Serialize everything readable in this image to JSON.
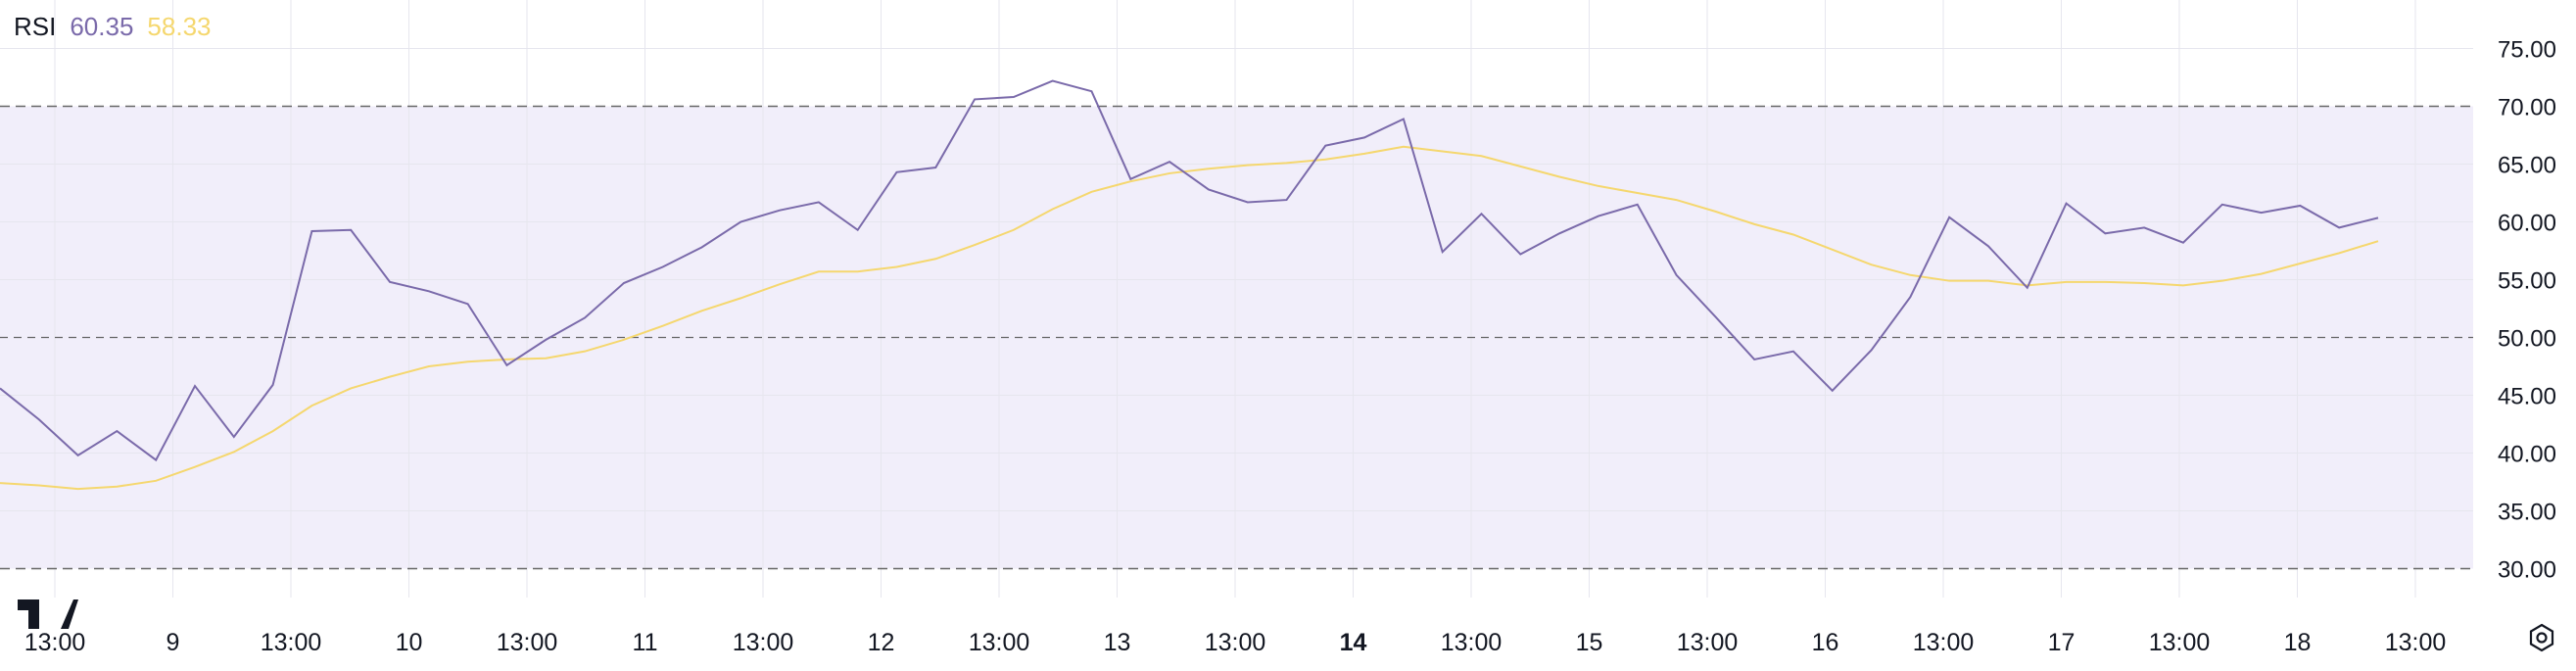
{
  "indicator": {
    "name": "RSI",
    "rsi_value": "60.35",
    "ma_value": "58.33"
  },
  "colors": {
    "rsi": "#7a6aaa",
    "ma": "#f5d76e",
    "band_fill": "#f1eefa",
    "grid": "#e6e6ee",
    "dashed": "#666666",
    "text": "#131722",
    "logo": "#131722"
  },
  "icons": {
    "logo": "tradingview-logo-icon",
    "settings": "settings-gear-icon"
  },
  "chart_data": {
    "type": "line",
    "title": "",
    "xlabel": "",
    "ylabel": "",
    "ylim": [
      27.5,
      77.5
    ],
    "y_ticks": [
      "75.00",
      "70.00",
      "65.00",
      "60.00",
      "55.00",
      "50.00",
      "45.00",
      "40.00",
      "35.00",
      "30.00"
    ],
    "x_ticks": [
      {
        "label": "13:00",
        "bold": false
      },
      {
        "label": "9",
        "bold": false
      },
      {
        "label": "13:00",
        "bold": false
      },
      {
        "label": "10",
        "bold": false
      },
      {
        "label": "13:00",
        "bold": false
      },
      {
        "label": "11",
        "bold": false
      },
      {
        "label": "13:00",
        "bold": false
      },
      {
        "label": "12",
        "bold": false
      },
      {
        "label": "13:00",
        "bold": false
      },
      {
        "label": "13",
        "bold": false
      },
      {
        "label": "13:00",
        "bold": false
      },
      {
        "label": "14",
        "bold": true
      },
      {
        "label": "13:00",
        "bold": false
      },
      {
        "label": "15",
        "bold": false
      },
      {
        "label": "13:00",
        "bold": false
      },
      {
        "label": "16",
        "bold": false
      },
      {
        "label": "13:00",
        "bold": false
      },
      {
        "label": "17",
        "bold": false
      },
      {
        "label": "13:00",
        "bold": false
      },
      {
        "label": "18",
        "bold": false
      },
      {
        "label": "13:00",
        "bold": false
      }
    ],
    "bands": {
      "upper": 70,
      "middle": 50,
      "lower": 30
    },
    "grid": true,
    "series": [
      {
        "name": "RSI",
        "values": [
          45.6,
          42.9,
          39.8,
          41.9,
          39.4,
          45.8,
          41.4,
          45.9,
          59.2,
          59.3,
          54.8,
          54.0,
          52.9,
          47.6,
          49.8,
          51.7,
          54.7,
          56.1,
          57.8,
          60.0,
          61.0,
          61.7,
          59.3,
          64.3,
          64.7,
          70.6,
          70.8,
          72.2,
          71.3,
          63.7,
          65.2,
          62.8,
          61.7,
          61.9,
          66.6,
          67.3,
          68.9,
          57.4,
          60.7,
          57.2,
          59.0,
          60.5,
          61.5,
          55.4,
          51.8,
          48.1,
          48.8,
          45.4,
          48.9,
          53.5,
          60.4,
          57.9,
          54.3,
          61.6,
          59.0,
          59.5,
          58.2,
          61.5,
          60.8,
          61.4,
          59.5,
          60.35
        ]
      },
      {
        "name": "MA",
        "values": [
          37.4,
          37.2,
          36.9,
          37.1,
          37.6,
          38.8,
          40.1,
          41.9,
          44.1,
          45.6,
          46.6,
          47.5,
          47.9,
          48.1,
          48.2,
          48.8,
          49.8,
          51.0,
          52.3,
          53.4,
          54.6,
          55.7,
          55.7,
          56.1,
          56.8,
          58.0,
          59.3,
          61.1,
          62.6,
          63.5,
          64.2,
          64.6,
          64.9,
          65.1,
          65.4,
          65.9,
          66.5,
          66.1,
          65.7,
          64.8,
          63.9,
          63.1,
          62.5,
          61.9,
          60.9,
          59.8,
          58.9,
          57.6,
          56.3,
          55.4,
          54.9,
          54.9,
          54.5,
          54.8,
          54.8,
          54.7,
          54.5,
          54.9,
          55.5,
          56.4,
          57.3,
          58.33
        ]
      }
    ]
  }
}
